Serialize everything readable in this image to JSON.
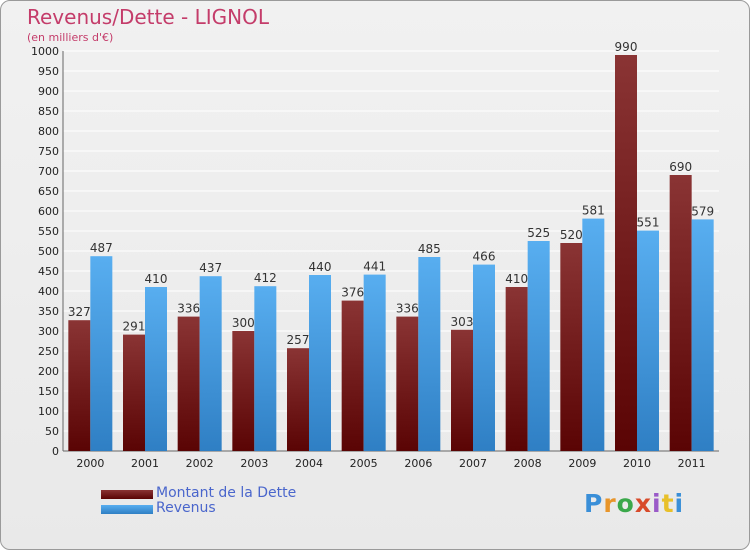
{
  "header": {
    "title": "Revenus/Dette - LIGNOL",
    "subtitle": "(en milliers d'€)"
  },
  "legend": [
    {
      "label": "Montant de la Dette",
      "color": "#7a1a1a"
    },
    {
      "label": "Revenus",
      "color": "#4a9fe6"
    }
  ],
  "logo": {
    "text": "Proxiti"
  },
  "chart_data": {
    "type": "bar",
    "title": "Revenus/Dette - LIGNOL",
    "ylabel": "(en milliers d'€)",
    "xlabel": "",
    "categories": [
      "2000",
      "2001",
      "2002",
      "2003",
      "2004",
      "2005",
      "2006",
      "2007",
      "2008",
      "2009",
      "2010",
      "2011"
    ],
    "series": [
      {
        "name": "Montant de la Dette",
        "color": "#7a1a1a",
        "values": [
          327,
          291,
          336,
          300,
          257,
          376,
          336,
          303,
          410,
          520,
          990,
          690
        ]
      },
      {
        "name": "Revenus",
        "color": "#4a9fe6",
        "values": [
          487,
          410,
          437,
          412,
          440,
          441,
          485,
          466,
          525,
          581,
          551,
          579
        ]
      }
    ],
    "ylim": [
      0,
      1000
    ],
    "yticks": [
      0,
      50,
      100,
      150,
      200,
      250,
      300,
      350,
      400,
      450,
      500,
      550,
      600,
      650,
      700,
      750,
      800,
      850,
      900,
      950,
      1000
    ],
    "grid": true,
    "legend_position": "bottom-left"
  }
}
